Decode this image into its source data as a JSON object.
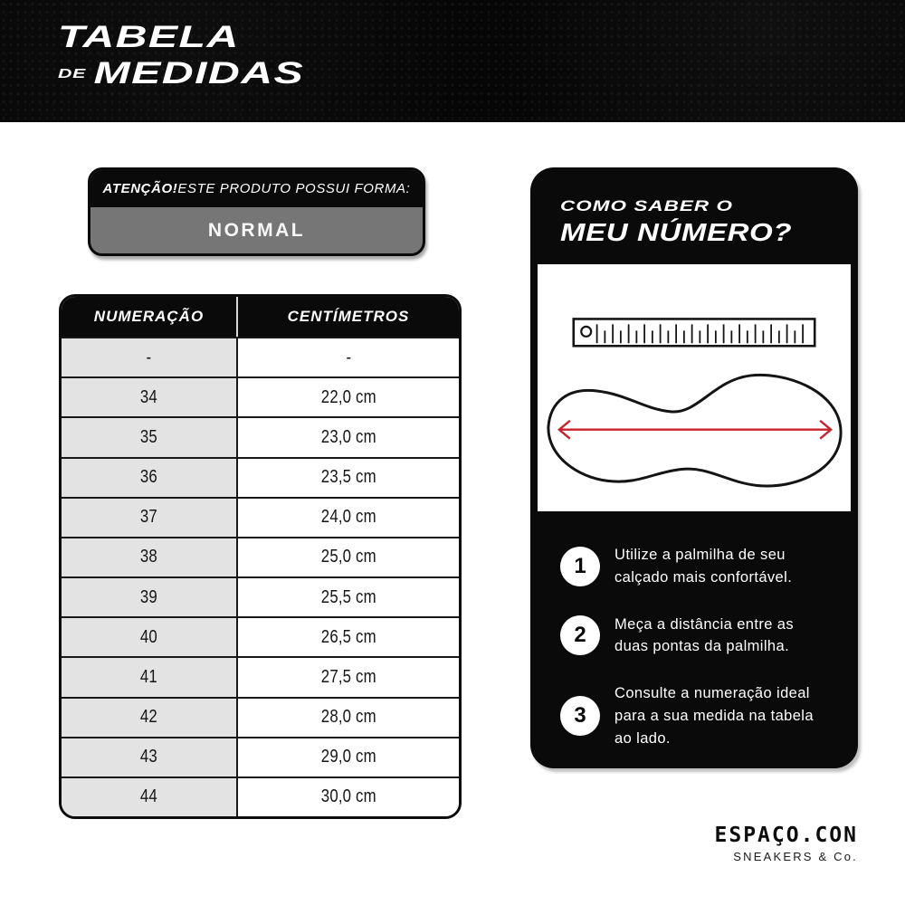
{
  "header": {
    "title_line1": "TABELA",
    "title_line2_prefix": "DE",
    "title_line2": "MEDIDAS"
  },
  "attention_badge": {
    "emphasis": "ATENÇÃO!",
    "text": "ESTE PRODUTO POSSUI FORMA:",
    "value": "NORMAL"
  },
  "size_table": {
    "columns": [
      "NUMERAÇÃO",
      "CENTÍMETROS"
    ],
    "rows": [
      [
        "-",
        "-"
      ],
      [
        "34",
        "22,0 cm"
      ],
      [
        "35",
        "23,0 cm"
      ],
      [
        "36",
        "23,5 cm"
      ],
      [
        "37",
        "24,0 cm"
      ],
      [
        "38",
        "25,0 cm"
      ],
      [
        "39",
        "25,5 cm"
      ],
      [
        "40",
        "26,5 cm"
      ],
      [
        "41",
        "27,5 cm"
      ],
      [
        "42",
        "28,0 cm"
      ],
      [
        "43",
        "29,0 cm"
      ],
      [
        "44",
        "30,0 cm"
      ]
    ]
  },
  "guide_panel": {
    "title_line1": "COMO SABER O",
    "title_line2": "MEU NÚMERO?",
    "illustration_icons": [
      "ruler-icon",
      "insole-icon",
      "measure-arrow-icon"
    ],
    "steps": [
      {
        "number": "1",
        "text": "Utilize a palmilha de seu calçado mais confortável."
      },
      {
        "number": "2",
        "text": "Meça a distância entre as duas pontas da palmilha."
      },
      {
        "number": "3",
        "text": "Consulte a numeração ideal para a sua medida na tabela ao lado."
      }
    ]
  },
  "footer": {
    "brand": "ESPAÇO.CON",
    "brand_sub": "SNEAKERS & Co."
  },
  "colors": {
    "accent_red": "#c8232b",
    "badge_gray": "#767676",
    "table_col1_bg": "#e3e3e3",
    "ink": "#141414"
  }
}
